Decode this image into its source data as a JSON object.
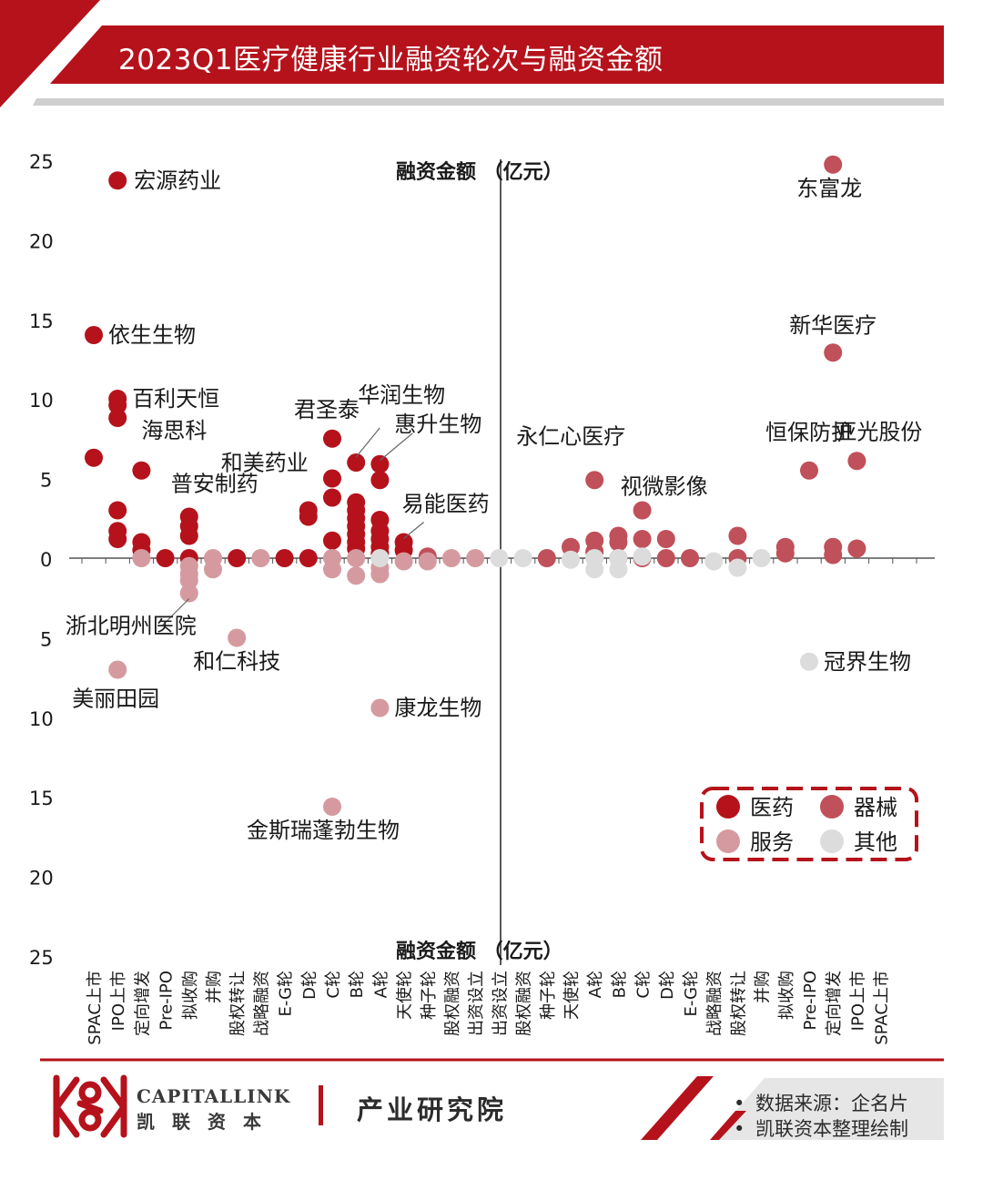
{
  "header": {
    "title": "2023Q1医疗健康行业融资轮次与融资金额"
  },
  "footer": {
    "brand_en": "CAPITALLINK",
    "brand_cn": "凯联资本",
    "institute": "产业研究院",
    "source_lines": [
      "数据来源：企名片",
      "凯联资本整理绘制"
    ],
    "bullet": "•"
  },
  "colors": {
    "brand_red": "#b5121b",
    "医药": "#b5121b",
    "器械": "#c0505a",
    "服务": "#d59a9f",
    "其他": "#dcdcdc"
  },
  "chart_data": {
    "type": "scatter",
    "title": "2023Q1医疗健康行业融资轮次与融资金额",
    "ylabel_top": "融资金额 （亿元）",
    "ylabel_bottom": "融资金额 （亿元）",
    "ylim": [
      -25,
      25
    ],
    "yticks": [
      25,
      20,
      15,
      10,
      5,
      0,
      5,
      10,
      15,
      20,
      25
    ],
    "categories": [
      "SPAC上市",
      "IPO上市",
      "定向增发",
      "Pre-IPO",
      "拟收购",
      "并购",
      "股权转让",
      "战略融资",
      "E-G轮",
      "D轮",
      "C轮",
      "B轮",
      "A轮",
      "天使轮",
      "种子轮",
      "股权融资",
      "出资设立",
      "出资设立",
      "股权融资",
      "种子轮",
      "天使轮",
      "A轮",
      "B轮",
      "C轮",
      "D轮",
      "E-G轮",
      "战略融资",
      "股权转让",
      "并购",
      "拟收购",
      "Pre-IPO",
      "定向增发",
      "IPO上市",
      "SPAC上市"
    ],
    "legend": {
      "placement": "lower-right",
      "entries": [
        "医药",
        "器械",
        "服务",
        "其他"
      ]
    },
    "grid": false,
    "series": [
      {
        "name": "医药",
        "points": [
          [
            0,
            14
          ],
          [
            0,
            6.3
          ],
          [
            1,
            23.7
          ],
          [
            1,
            10
          ],
          [
            1,
            9.6
          ],
          [
            1,
            8.8
          ],
          [
            1,
            3
          ],
          [
            1,
            1.7
          ],
          [
            1,
            1.2
          ],
          [
            2,
            5.5
          ],
          [
            2,
            1
          ],
          [
            2,
            0.5
          ],
          [
            3,
            0
          ],
          [
            4,
            2.6
          ],
          [
            4,
            2
          ],
          [
            4,
            1.4
          ],
          [
            4,
            0
          ],
          [
            6,
            0
          ],
          [
            8,
            0
          ],
          [
            9,
            3
          ],
          [
            9,
            2.6
          ],
          [
            9,
            0
          ],
          [
            10,
            7.5
          ],
          [
            10,
            5
          ],
          [
            10,
            3.8
          ],
          [
            10,
            1.1
          ],
          [
            11,
            6
          ],
          [
            11,
            3.5
          ],
          [
            11,
            3
          ],
          [
            11,
            2.5
          ],
          [
            11,
            2
          ],
          [
            11,
            1.5
          ],
          [
            11,
            1
          ],
          [
            11,
            0.6
          ],
          [
            12,
            5.9
          ],
          [
            12,
            4.9
          ],
          [
            12,
            2.4
          ],
          [
            12,
            1.7
          ],
          [
            12,
            1.2
          ],
          [
            12,
            0.7
          ],
          [
            12,
            0.3
          ],
          [
            13,
            1
          ],
          [
            13,
            0.5
          ]
        ]
      },
      {
        "name": "器械",
        "points": [
          [
            19,
            0
          ],
          [
            20,
            0.7
          ],
          [
            21,
            4.9
          ],
          [
            21,
            1.1
          ],
          [
            21,
            0.4
          ],
          [
            22,
            1.4
          ],
          [
            22,
            1
          ],
          [
            23,
            3
          ],
          [
            23,
            1.2
          ],
          [
            24,
            1.2
          ],
          [
            24,
            0
          ],
          [
            25,
            0
          ],
          [
            27,
            1.4
          ],
          [
            27,
            0
          ],
          [
            29,
            0.7
          ],
          [
            29,
            0.3
          ],
          [
            31,
            24.7
          ],
          [
            31,
            12.9
          ],
          [
            31,
            0.7
          ],
          [
            31,
            0.2
          ],
          [
            30,
            5.5
          ],
          [
            32,
            6.1
          ],
          [
            32,
            0.6
          ],
          [
            14,
            0.1
          ],
          [
            23,
            0
          ],
          [
            22,
            0
          ]
        ]
      },
      {
        "name": "服务",
        "points": [
          [
            2,
            0
          ],
          [
            4,
            -0.5
          ],
          [
            4,
            -1
          ],
          [
            4,
            -1.4
          ],
          [
            4,
            -2.2
          ],
          [
            5,
            0
          ],
          [
            5,
            -0.7
          ],
          [
            6,
            -5
          ],
          [
            7,
            0
          ],
          [
            1,
            -7
          ],
          [
            10,
            -0.7
          ],
          [
            10,
            -15.6
          ],
          [
            11,
            -1.1
          ],
          [
            12,
            -1
          ],
          [
            12,
            -0.6
          ],
          [
            12,
            -9.4
          ],
          [
            13,
            -0.2
          ],
          [
            14,
            -0.2
          ],
          [
            15,
            0
          ],
          [
            16,
            0
          ],
          [
            10,
            0
          ],
          [
            11,
            0
          ]
        ]
      },
      {
        "name": "其他",
        "points": [
          [
            17,
            0
          ],
          [
            18,
            0
          ],
          [
            20,
            -0.1
          ],
          [
            21,
            -0.7
          ],
          [
            21,
            0
          ],
          [
            22,
            -0.7
          ],
          [
            22,
            0
          ],
          [
            23,
            0.1
          ],
          [
            26,
            -0.2
          ],
          [
            27,
            -0.6
          ],
          [
            28,
            0
          ],
          [
            30,
            -6.5
          ],
          [
            12,
            0
          ]
        ]
      }
    ],
    "annotations": [
      {
        "text": "宏源药业",
        "x": 1,
        "y": 23.7
      },
      {
        "text": "依生生物",
        "x": 0,
        "y": 14
      },
      {
        "text": "百利天恒",
        "x": 1,
        "y": 10
      },
      {
        "text": "海思科",
        "x": 2,
        "y": 5.5
      },
      {
        "text": "普安制药",
        "x": 4,
        "y": 2.6
      },
      {
        "text": "和美药业",
        "x": 9,
        "y": 3
      },
      {
        "text": "君圣泰",
        "x": 10,
        "y": 7.5
      },
      {
        "text": "华润生物",
        "x": 11,
        "y": 6
      },
      {
        "text": "惠升生物",
        "x": 12,
        "y": 5.9
      },
      {
        "text": "易能医药",
        "x": 13,
        "y": 1
      },
      {
        "text": "浙北明州医院",
        "x": 4,
        "y": -2.2
      },
      {
        "text": "美丽田园",
        "x": 1,
        "y": -7
      },
      {
        "text": "和仁科技",
        "x": 6,
        "y": -5
      },
      {
        "text": "康龙生物",
        "x": 12,
        "y": -9.4
      },
      {
        "text": "金斯瑞蓬勃生物",
        "x": 10,
        "y": -15.6
      },
      {
        "text": "永仁心医疗",
        "x": 21,
        "y": 4.9
      },
      {
        "text": "视微影像",
        "x": 23,
        "y": 3
      },
      {
        "text": "恒保防护",
        "x": 30,
        "y": 5.5
      },
      {
        "text": "东富龙",
        "x": 31,
        "y": 24.7
      },
      {
        "text": "新华医疗",
        "x": 31,
        "y": 12.9
      },
      {
        "text": "亚光股份",
        "x": 32,
        "y": 6.1
      },
      {
        "text": "冠界生物",
        "x": 30,
        "y": -6.5
      }
    ]
  }
}
